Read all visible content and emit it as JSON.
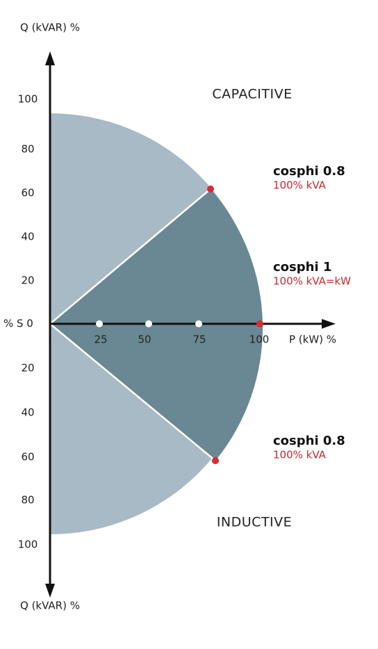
{
  "axes": {
    "q_top": "Q (kVAR) %",
    "q_bottom": "Q (kVAR) %",
    "p": "P (kW) %",
    "origin": "% S 0"
  },
  "q_upper_labels": [
    100,
    80,
    60,
    40,
    20
  ],
  "q_lower_labels": [
    20,
    40,
    60,
    80,
    100
  ],
  "p_labels": [
    25,
    50,
    75,
    100
  ],
  "zones": {
    "capacitive": "CAPACITIVE",
    "inductive": "INDUCTIVE"
  },
  "annotations": [
    {
      "title": "cosphi 0.8",
      "subtitle": "100% kVA"
    },
    {
      "title": "cosphi 1",
      "subtitle": "100% kVA=kW"
    },
    {
      "title": "cosphi 0.8",
      "subtitle": "100% kVA"
    }
  ]
}
